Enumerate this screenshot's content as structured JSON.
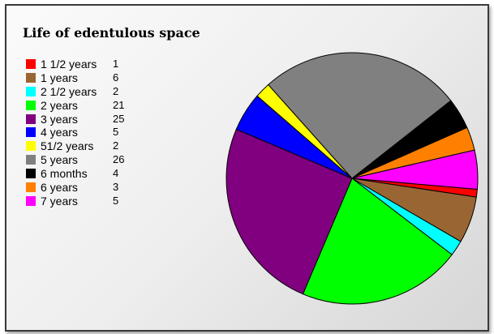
{
  "chart_data": {
    "type": "pie",
    "title": "Life of edentulous space",
    "legend_position": "top-left",
    "slices": [
      {
        "label": "1 1/2 years",
        "value": 1,
        "color": "#ff0000"
      },
      {
        "label": "1 years",
        "value": 6,
        "color": "#996633"
      },
      {
        "label": "2 1/2 years",
        "value": 2,
        "color": "#00ffff"
      },
      {
        "label": "2 years",
        "value": 21,
        "color": "#00ff00"
      },
      {
        "label": "3 years",
        "value": 25,
        "color": "#800080"
      },
      {
        "label": "4 years",
        "value": 5,
        "color": "#0000ff"
      },
      {
        "label": "51/2 years",
        "value": 2,
        "color": "#ffff00"
      },
      {
        "label": "5 years",
        "value": 26,
        "color": "#808080"
      },
      {
        "label": "6 months",
        "value": 4,
        "color": "#000000"
      },
      {
        "label": "6 years",
        "value": 3,
        "color": "#ff8000"
      },
      {
        "label": "7 years",
        "value": 5,
        "color": "#ff00ff"
      }
    ]
  }
}
